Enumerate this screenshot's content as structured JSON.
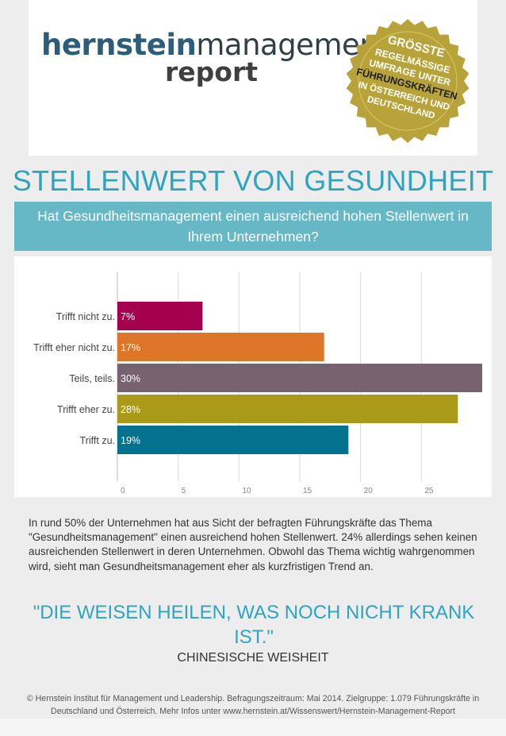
{
  "logo": {
    "brand_bold": "hernstein",
    "brand_light": "management",
    "line2": "report"
  },
  "seal": {
    "lines": [
      "GRÖSSTE",
      "REGELMÄSSIGE",
      "UMFRAGE UNTER",
      "FÜHRUNGSKRÄFTEN",
      "IN ÖSTERREICH UND",
      "DEUTSCHLAND"
    ],
    "color": "#b8a33a"
  },
  "title": "STELLENWERT VON GESUNDHEIT",
  "question": "Hat Gesundheitsmanagement einen ausreichend hohen Stellenwert in Ihrem Unternehmen?",
  "chart_data": {
    "type": "bar",
    "orientation": "horizontal",
    "categories": [
      "Trifft nicht zu.",
      "Trifft eher nicht zu.",
      "Teils, teils.",
      "Trifft eher zu.",
      "Trifft zu."
    ],
    "values": [
      7,
      17,
      30,
      28,
      19
    ],
    "labels": [
      "7%",
      "17%",
      "30%",
      "28%",
      "19%"
    ],
    "colors": [
      "#a4004f",
      "#dd7629",
      "#776270",
      "#a99a19",
      "#04728f"
    ],
    "xticks": [
      0,
      5,
      10,
      15,
      20,
      25
    ],
    "xlim": [
      0,
      30
    ],
    "grid": true
  },
  "body_text": "In rund 50% der Unternehmen hat aus Sicht der befragten Führungskräfte das Thema \"Gesundheitsmanagement\" einen ausreichend hohen Stellenwert. 24% allerdings sehen keinen ausreichenden Stellenwert in deren Unternehmen. Obwohl das Thema wichtig wahrgenommen wird, sieht man Gesundheitsmanagement eher als kurzfristigen Trend an.",
  "quote": "\"DIE WEISEN HEILEN, WAS NOCH NICHT KRANK IST.\"",
  "quote_source": "CHINESISCHE WEISHEIT",
  "footer": "© Hernstein Institut für Management und Leadership. Befragungszeitraum: Mai 2014. Zielgruppe: 1.079 Führungskräfte in Deutschland und Österreich. Mehr Infos unter www.hernstein.at/Wissenswert/Hernstein-Management-Report"
}
